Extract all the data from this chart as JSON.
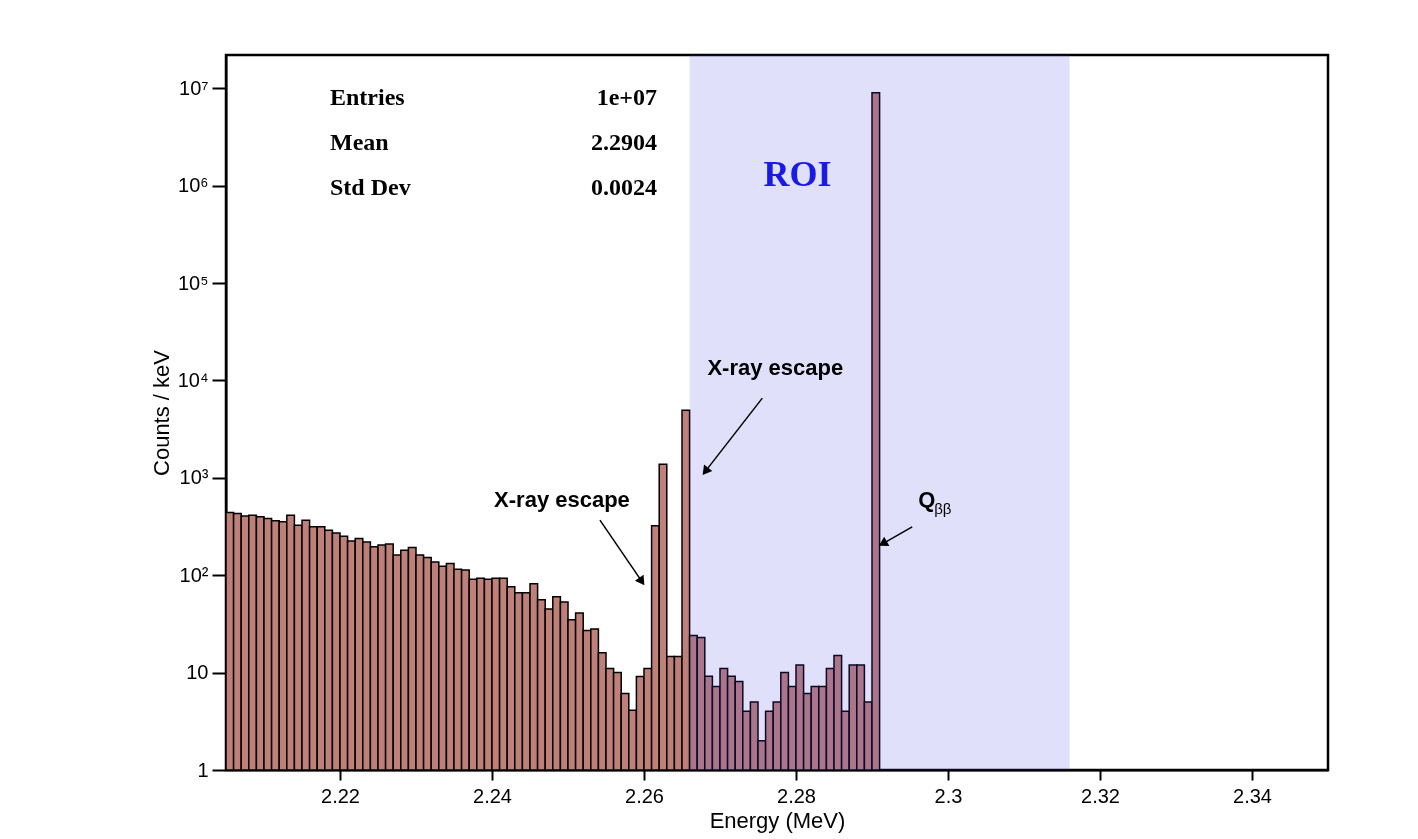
{
  "chart_data": {
    "type": "histogram",
    "xlabel": "Energy (MeV)",
    "ylabel": "Counts / keV",
    "bins": [
      2.205,
      2.206,
      2.207,
      2.208,
      2.209,
      2.21,
      2.211,
      2.212,
      2.213,
      2.214,
      2.215,
      2.216,
      2.217,
      2.218,
      2.219,
      2.22,
      2.221,
      2.222,
      2.223,
      2.224,
      2.225,
      2.226,
      2.227,
      2.228,
      2.229,
      2.23,
      2.231,
      2.232,
      2.233,
      2.234,
      2.235,
      2.236,
      2.237,
      2.238,
      2.239,
      2.24,
      2.241,
      2.242,
      2.243,
      2.244,
      2.245,
      2.246,
      2.247,
      2.248,
      2.249,
      2.25,
      2.251,
      2.252,
      2.253,
      2.254,
      2.255,
      2.256,
      2.257,
      2.258,
      2.259,
      2.26,
      2.261,
      2.262,
      2.263,
      2.264,
      2.265,
      2.266,
      2.267,
      2.268,
      2.269,
      2.27,
      2.271,
      2.272,
      2.273,
      2.274,
      2.275,
      2.276,
      2.277,
      2.278,
      2.279,
      2.28,
      2.281,
      2.282,
      2.283,
      2.284,
      2.285,
      2.286,
      2.287,
      2.288,
      2.289,
      2.29,
      2.291
    ],
    "values": [
      440,
      430,
      405,
      414,
      398,
      383,
      362,
      355,
      414,
      327,
      368,
      314,
      314,
      290,
      272,
      252,
      225,
      238,
      220,
      196,
      204,
      209,
      161,
      181,
      193,
      161,
      152,
      137,
      124,
      132,
      115,
      113,
      91,
      93,
      91,
      93,
      93,
      76,
      66,
      66,
      82,
      56,
      45,
      60,
      53,
      35,
      41,
      27,
      28,
      16,
      11,
      10,
      6.1,
      4.1,
      9.1,
      11,
      322,
      1380,
      14.6,
      14.6,
      4950,
      24,
      23,
      9.2,
      7.2,
      11,
      9.2,
      8.1,
      4,
      5,
      2,
      4,
      5,
      10,
      7.2,
      12,
      6.1,
      7.2,
      7.2,
      11,
      15,
      4,
      12,
      12,
      5,
      9000000
    ],
    "color": "#c0807a",
    "log": "y",
    "grid": false,
    "xlim": [
      2.205,
      2.35
    ],
    "ylim": [
      1,
      22000000
    ],
    "xticks": [
      2.22,
      2.24,
      2.26,
      2.28,
      2.3,
      2.32,
      2.34
    ],
    "yticks": [
      1,
      10,
      {
        "value": 100,
        "label": "10²"
      },
      {
        "value": 1000,
        "label": "10³"
      },
      {
        "value": 10000,
        "label": "10⁴"
      },
      {
        "value": 100000,
        "label": "10⁵"
      },
      {
        "value": 1000000,
        "label": "10⁶"
      },
      {
        "value": 10000000,
        "label": "10⁷"
      }
    ],
    "bands": [
      {
        "axis": "x",
        "from": 2.266,
        "to": 2.316,
        "label": "ROI",
        "color": "#3f3fe5"
      }
    ],
    "annotations": [
      "Entries",
      "1e+07",
      "Mean",
      "2.2904",
      "Std Dev",
      "0.0024",
      {
        "text": "X-ray escape",
        "x": 2.2596,
        "y": 89
      },
      {
        "text": "X-ray escape",
        "x": 2.2682,
        "y": 1200
      },
      {
        "text": "Q$_{ββ}$",
        "x": 2.2916,
        "y": 215
      }
    ]
  }
}
